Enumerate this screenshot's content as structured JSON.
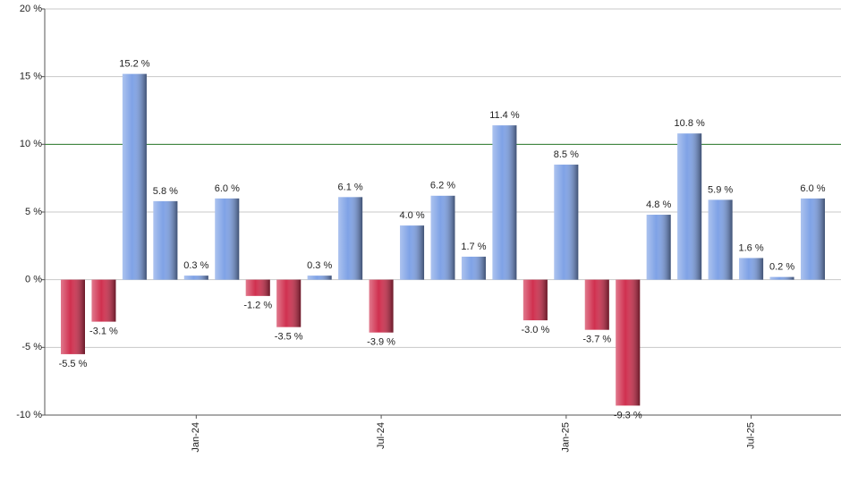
{
  "chart_data": {
    "type": "bar",
    "categories": [
      null,
      null,
      null,
      null,
      "Jan-24",
      null,
      null,
      null,
      null,
      null,
      "Jul-24",
      null,
      null,
      null,
      null,
      null,
      "Jan-25",
      null,
      null,
      null,
      null,
      null,
      "Jul-25",
      null,
      null
    ],
    "values": [
      -5.5,
      -3.1,
      15.2,
      5.8,
      0.3,
      6.0,
      -1.2,
      -3.5,
      0.3,
      6.1,
      -3.9,
      4.0,
      6.2,
      1.7,
      11.4,
      -3.0,
      8.5,
      -3.7,
      -9.3,
      4.8,
      10.8,
      5.9,
      1.6,
      0.2,
      6.0
    ],
    "value_labels": [
      "-5.5 %",
      "-3.1 %",
      "15.2 %",
      "5.8 %",
      "0.3 %",
      "6.0 %",
      "-1.2 %",
      "-3.5 %",
      "0.3 %",
      "6.1 %",
      "-3.9 %",
      "4.0 %",
      "6.2 %",
      "1.7 %",
      "11.4 %",
      "-3.0 %",
      "8.5 %",
      "-3.7 %",
      "-9.3 %",
      "4.8 %",
      "10.8 %",
      "5.9 %",
      "1.6 %",
      "0.2 %",
      "6.0 %"
    ],
    "positive_color": "#7fa2e6",
    "negative_color": "#d0304f",
    "ylim": [
      -10,
      20
    ],
    "yticks": [
      {
        "value": -10,
        "label": "-10 %"
      },
      {
        "value": -5,
        "label": "-5 %"
      },
      {
        "value": 0,
        "label": "0 %"
      },
      {
        "value": 5,
        "label": "5 %"
      },
      {
        "value": 10,
        "label": "10 %"
      },
      {
        "value": 15,
        "label": "15 %"
      },
      {
        "value": 20,
        "label": "20 %"
      }
    ],
    "grid": true,
    "reference_line": 10,
    "reference_line_color": "#2e7d2e"
  }
}
